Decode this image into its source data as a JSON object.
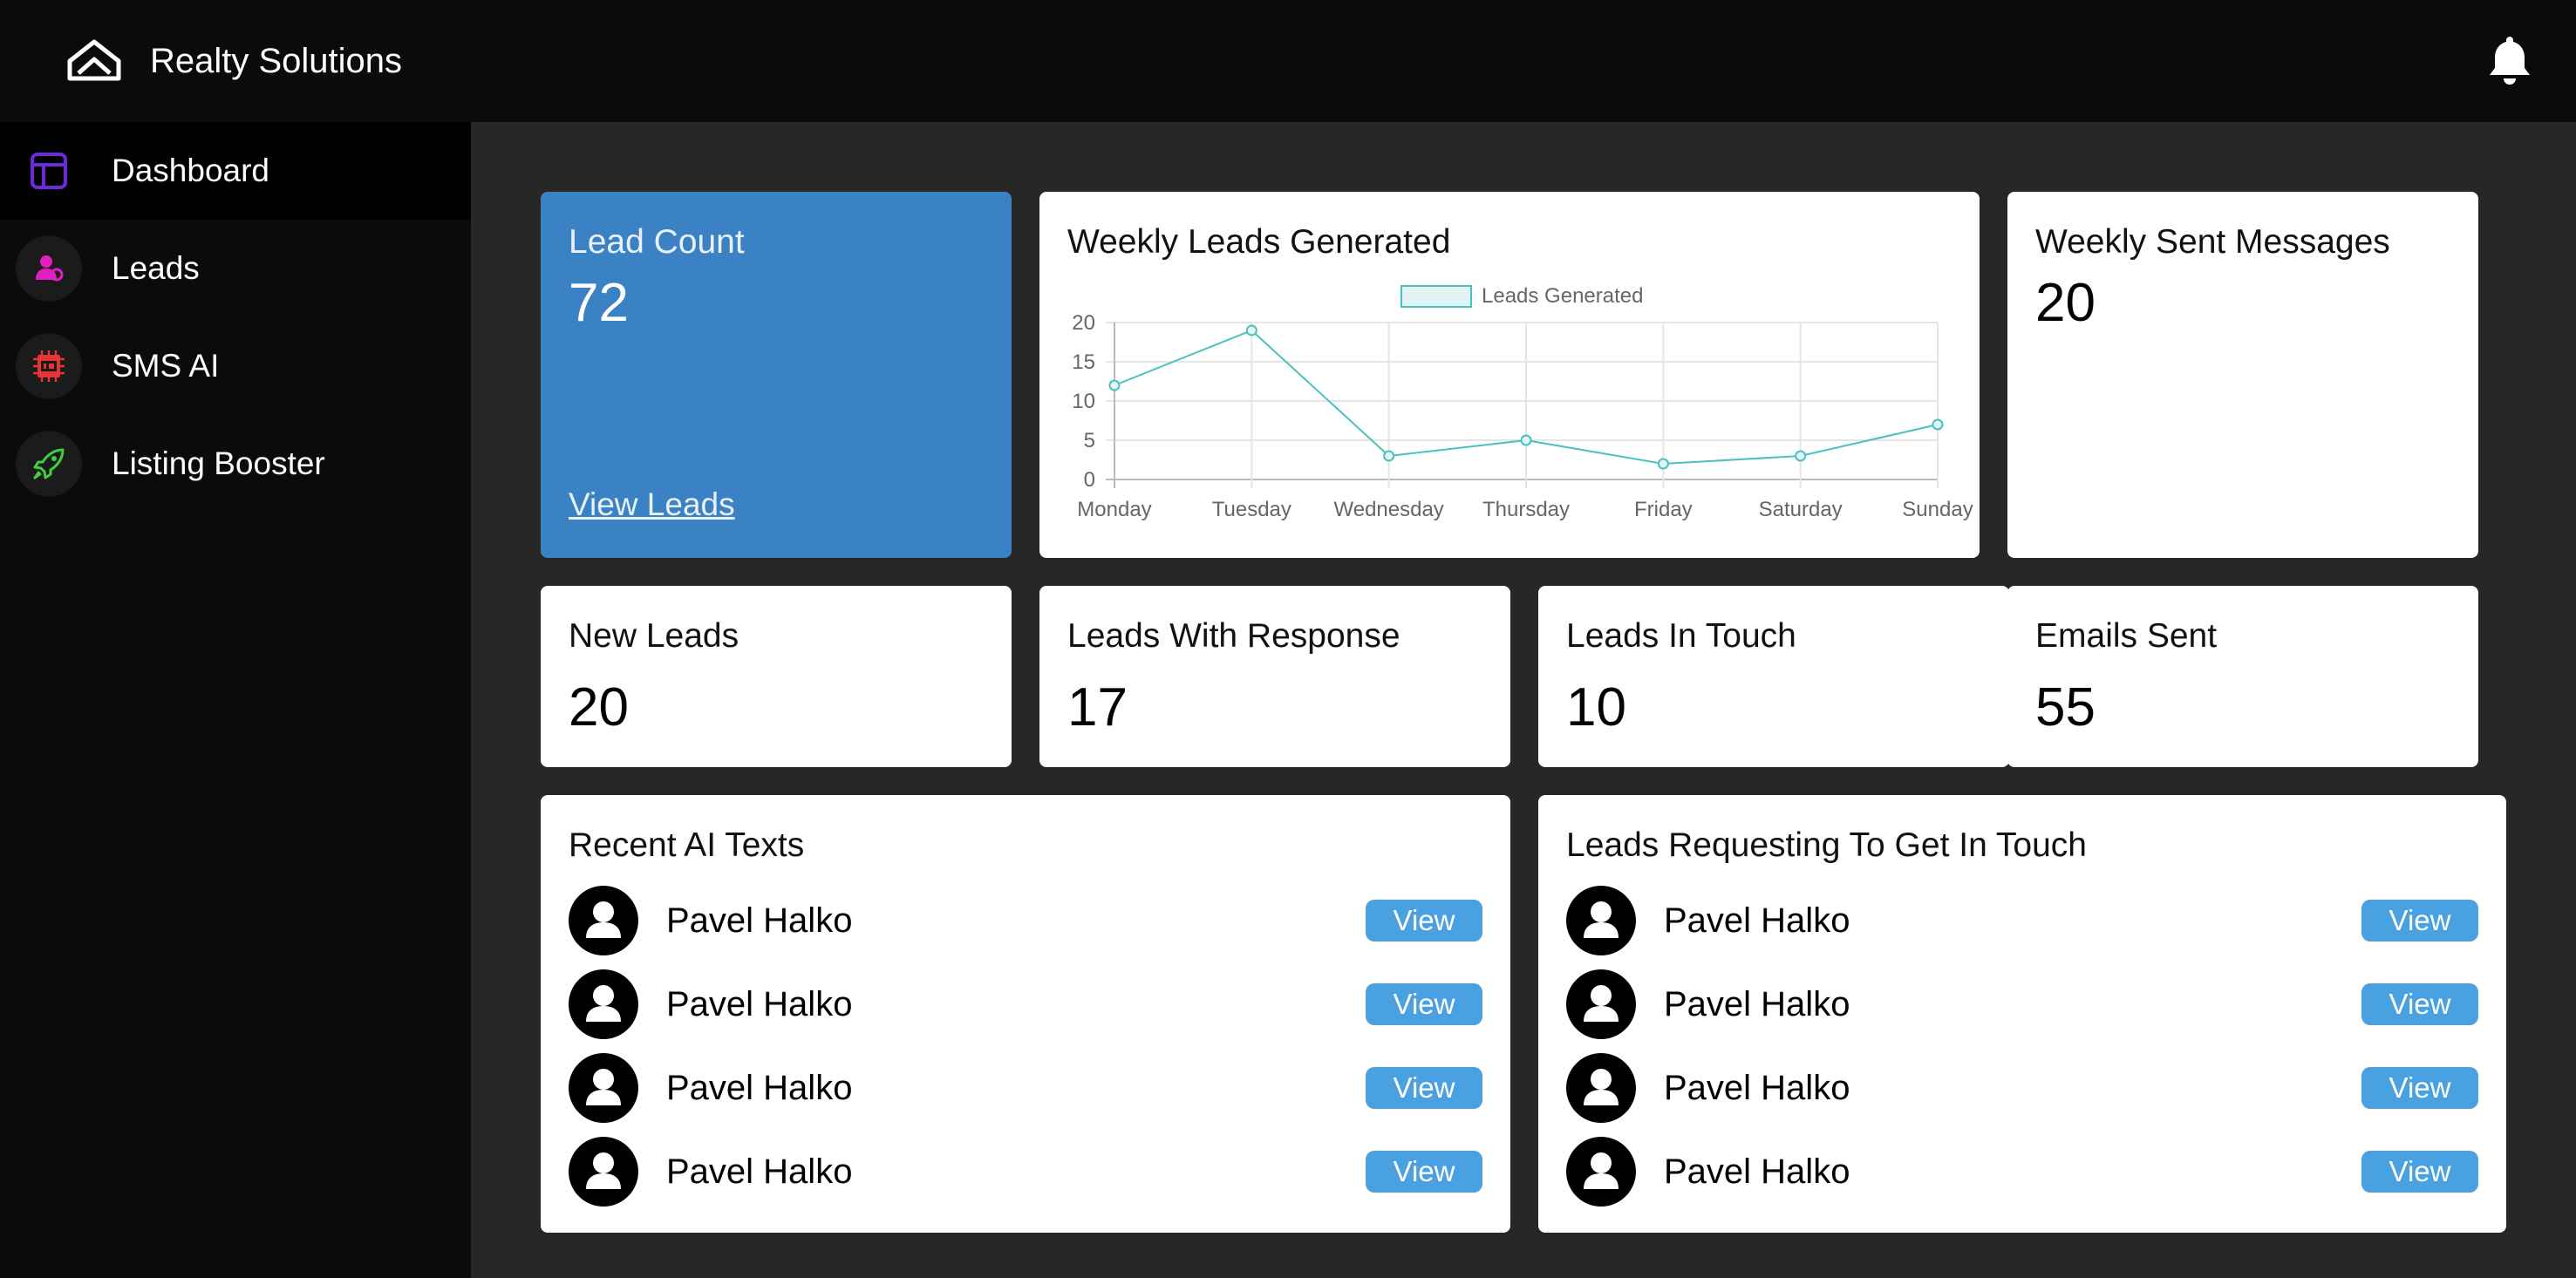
{
  "header": {
    "brand_name": "Realty Solutions",
    "logo_icon": "house-logo-icon",
    "notification_icon": "bell-icon"
  },
  "sidebar": {
    "items": [
      {
        "label": "Dashboard",
        "icon": "dashboard-icon",
        "color": "#6b2bdc",
        "active": true
      },
      {
        "label": "Leads",
        "icon": "user-icon",
        "color": "#e11fc1",
        "active": false
      },
      {
        "label": "SMS AI",
        "icon": "ai-chip-icon",
        "color": "#e53535",
        "active": false
      },
      {
        "label": "Listing Booster",
        "icon": "rocket-icon",
        "color": "#3fcf3f",
        "active": false
      }
    ]
  },
  "cards": {
    "lead_count": {
      "title": "Lead Count",
      "value": "72",
      "link": "View Leads",
      "color": "#3a82c4"
    },
    "weekly_leads": {
      "title": "Weekly Leads Generated"
    },
    "weekly_messages": {
      "title": "Weekly Sent Messages",
      "value": "20"
    },
    "new_leads": {
      "title": "New Leads",
      "value": "20"
    },
    "leads_with_response": {
      "title": "Leads With Response",
      "value": "17"
    },
    "leads_in_touch": {
      "title": "Leads In Touch",
      "value": "10"
    },
    "emails_sent": {
      "title": "Emails Sent",
      "value": "55"
    }
  },
  "chart_data": {
    "type": "line",
    "title": "",
    "categories": [
      "Monday",
      "Tuesday",
      "Wednesday",
      "Thursday",
      "Friday",
      "Saturday",
      "Sunday"
    ],
    "series": [
      {
        "name": "Leads Generated",
        "values": [
          12,
          19,
          3,
          5,
          2,
          3,
          7
        ],
        "color": "#4bc0c0"
      }
    ],
    "ylim": [
      0,
      20
    ],
    "yticks": [
      "0",
      "5",
      "10",
      "15",
      "20"
    ],
    "grid": true,
    "legend": "top-center"
  },
  "recent_ai_texts": {
    "title": "Recent AI Texts",
    "items": [
      {
        "name": "Pavel Halko",
        "button": "View"
      },
      {
        "name": "Pavel Halko",
        "button": "View"
      },
      {
        "name": "Pavel Halko",
        "button": "View"
      },
      {
        "name": "Pavel Halko",
        "button": "View"
      }
    ]
  },
  "leads_requesting": {
    "title": "Leads Requesting To Get In Touch",
    "items": [
      {
        "name": "Pavel Halko",
        "button": "View"
      },
      {
        "name": "Pavel Halko",
        "button": "View"
      },
      {
        "name": "Pavel Halko",
        "button": "View"
      },
      {
        "name": "Pavel Halko",
        "button": "View"
      }
    ]
  }
}
